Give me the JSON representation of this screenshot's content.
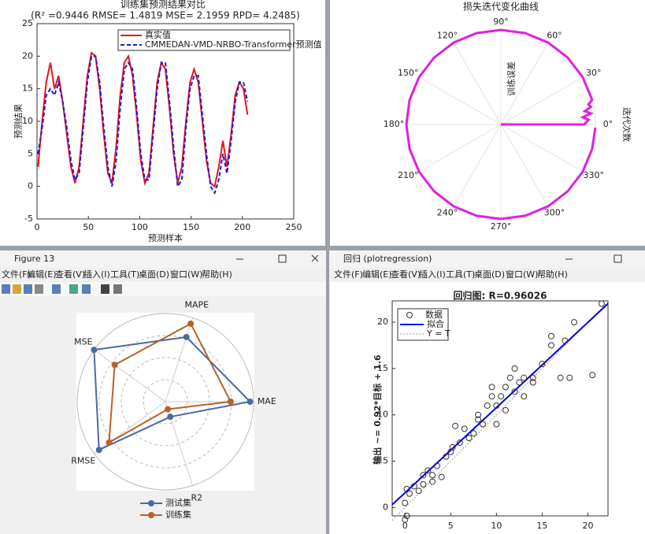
{
  "windows": [
    {
      "title": "Figure 13",
      "menu": [
        "文件(F)",
        "编辑(E)",
        "查看(V)",
        "插入(I)",
        "工具(T)",
        "桌面(D)",
        "窗口(W)",
        "帮助(H)"
      ]
    },
    {
      "title": "回归 (plotregression)",
      "menu": [
        "文件(F)",
        "编辑(E)",
        "查看(V)",
        "插入(I)",
        "工具(T)",
        "桌面(D)",
        "窗口(W)",
        "帮助(H)"
      ]
    }
  ],
  "chart_data": [
    {
      "type": "line",
      "title": "训练集预测结果对比",
      "subtitle": "(R² =0.9446 RMSE= 1.4819 MSE= 2.1959 RPD= 4.2485)",
      "xlabel": "预测样本",
      "ylabel": "预测结果",
      "x": [
        1,
        5,
        9,
        13,
        17,
        21,
        25,
        29,
        33,
        37,
        41,
        45,
        49,
        53,
        57,
        61,
        65,
        69,
        73,
        77,
        81,
        85,
        89,
        93,
        97,
        101,
        105,
        109,
        113,
        117,
        121,
        125,
        129,
        133,
        137,
        141,
        145,
        149,
        153,
        157,
        161,
        165,
        169,
        173,
        177,
        181,
        185,
        189,
        193,
        197,
        201,
        205
      ],
      "series": [
        {
          "name": "真实值",
          "color": "#e8141c",
          "values": [
            3,
            10,
            16,
            19,
            15,
            17,
            13,
            8,
            3,
            0.5,
            3,
            10,
            17,
            20.5,
            20,
            15,
            8,
            2,
            0.5,
            6,
            14,
            19,
            20,
            17,
            11,
            4,
            0.5,
            2,
            9,
            16,
            19,
            18,
            12,
            5,
            0.5,
            3,
            10,
            16,
            18,
            16,
            10,
            4,
            0.5,
            0,
            3,
            7,
            3,
            8,
            14,
            16,
            15,
            11
          ]
        },
        {
          "name": "CMMEDAN-VMD-NRBO-Transformer预测值",
          "color": "#1a1adb",
          "dashed": true,
          "values": [
            5,
            9,
            14,
            15,
            14,
            16,
            13,
            9,
            4,
            1,
            2,
            9,
            16,
            20,
            20,
            16,
            9,
            3,
            0,
            4,
            12,
            18,
            19,
            18,
            12,
            5,
            1,
            1,
            8,
            15,
            19,
            19,
            13,
            6,
            0,
            1,
            9,
            15,
            17,
            17,
            11,
            5,
            0,
            -1,
            1,
            5,
            2,
            7,
            13,
            16,
            16,
            13
          ]
        }
      ],
      "xlim": [
        0,
        250
      ],
      "xticks": [
        0,
        50,
        100,
        150,
        200,
        250
      ],
      "ylim": [
        -5,
        25
      ],
      "yticks": [
        -5,
        0,
        5,
        10,
        15,
        20,
        25
      ]
    },
    {
      "type": "polar",
      "title": "损失迭代变化曲线",
      "rlabel": "训练误差",
      "thetalabel": "迭代次数",
      "color": "#e020e0",
      "rlim": [
        0,
        1
      ],
      "thetaticks": [
        {
          "value": 0,
          "label": "0°"
        },
        {
          "value": 30,
          "label": "30°"
        },
        {
          "value": 60,
          "label": "60°"
        },
        {
          "value": 90,
          "label": "90°"
        },
        {
          "value": 120,
          "label": "120°"
        },
        {
          "value": 150,
          "label": "150°"
        },
        {
          "value": 180,
          "label": "180°"
        },
        {
          "value": 210,
          "label": "210°"
        },
        {
          "value": 240,
          "label": "240°"
        },
        {
          "value": 270,
          "label": "270°"
        },
        {
          "value": 300,
          "label": "300°"
        },
        {
          "value": 330,
          "label": "330°"
        }
      ],
      "theta": [
        0,
        0,
        3,
        5,
        7,
        9,
        11,
        13,
        15,
        30,
        45,
        60,
        75,
        90,
        105,
        120,
        135,
        150,
        165,
        180,
        195,
        210,
        225,
        240,
        255,
        270,
        285,
        300,
        315,
        330,
        345,
        358
      ],
      "r": [
        0,
        0.88,
        0.93,
        0.87,
        0.96,
        0.9,
        0.97,
        0.95,
        1,
        1,
        1,
        1,
        1,
        1,
        1,
        1,
        1,
        1,
        1,
        1,
        1,
        1,
        1,
        1,
        1,
        1,
        1,
        1,
        1,
        1,
        1,
        1
      ]
    },
    {
      "type": "radar",
      "categories": [
        "MAE",
        "MAPE",
        "MSE",
        "RMSE",
        "R2"
      ],
      "series": [
        {
          "name": "测试集",
          "color": "#4a6aa5",
          "values": [
            0.96,
            0.77,
            1,
            0.93,
            0.18
          ]
        },
        {
          "name": "训练集",
          "color": "#b8622a",
          "values": [
            0.74,
            0.93,
            0.71,
            0.79,
            0.09
          ]
        }
      ]
    },
    {
      "type": "scatter",
      "title": "回归图: R=0.96026",
      "ylabel": "输出 ~= 0.92*目标 + 1.6",
      "x": [
        0,
        0.2,
        0,
        0.5,
        0.2,
        1,
        1.5,
        2,
        2,
        2.5,
        3,
        3,
        3.5,
        4,
        4.5,
        5,
        5.2,
        5.5,
        6,
        6.5,
        7,
        7.5,
        8,
        8,
        8.5,
        9,
        9.5,
        9.5,
        10,
        10,
        10.5,
        11,
        11,
        11.5,
        12,
        12,
        12.5,
        13,
        13,
        14,
        14,
        15,
        16,
        16,
        17,
        17.5,
        18,
        18.5,
        20.5,
        21.5
      ],
      "values": [
        -1.3,
        -0.9,
        0.5,
        1.5,
        2,
        2.3,
        1.8,
        2.5,
        3.5,
        4,
        3.5,
        2.8,
        4.5,
        3.3,
        5.5,
        6,
        6.5,
        8.8,
        7,
        8.5,
        7.5,
        8,
        9.5,
        10,
        9,
        11,
        12,
        13,
        9,
        11,
        12,
        10.5,
        13,
        14,
        12.5,
        15,
        13.5,
        12,
        14,
        13.5,
        14,
        15.5,
        18.5,
        17.5,
        14,
        18,
        14,
        20,
        14.3,
        22
      ],
      "fit": {
        "name": "拟合",
        "color": "#0000ee",
        "x": [
          -1.4,
          22.2
        ],
        "y": [
          0.31,
          22.0
        ]
      },
      "identity": {
        "name": "Y = T",
        "x": [
          -1.4,
          22.2
        ],
        "y": [
          -1.4,
          22.2
        ]
      },
      "legend": "数据",
      "xlim": [
        -1.4,
        22.2
      ],
      "xticks": [
        0,
        5,
        10,
        15,
        20
      ],
      "ylim": [
        -0.9,
        22.3
      ],
      "yticks": [
        0,
        5,
        10,
        15,
        20
      ]
    }
  ]
}
